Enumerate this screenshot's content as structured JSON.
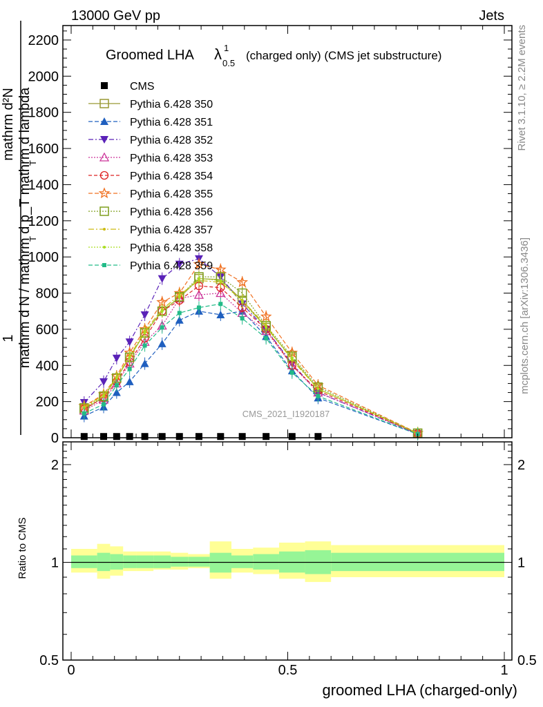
{
  "header": {
    "left": "13000 GeV pp",
    "right": "Jets"
  },
  "side": {
    "rivet": "Rivet 3.1.10, ≥ 2.2M events",
    "mcplots": "mcplots.cern.ch [arXiv:1306.3436]"
  },
  "colors": {
    "band_inner": "#96f596",
    "band_outer": "#ffff96"
  },
  "chart_data": {
    "type": "line",
    "title": "Groomed LHA",
    "title_lambda": "λ",
    "title_sup": "1",
    "title_sub": "0.5",
    "title_suffix": "(charged only) (CMS jet substructure)",
    "analysis_label": "CMS_2021_I1920187",
    "ylabel_num": "1",
    "ylabel_frac_top": "mathrm d²N",
    "ylabel_frac_bottom": "mathrm d N / mathrm d p_T mathrm d lambda",
    "ylabel_sub1": "T",
    "ylabel_sub2": "T",
    "xlabel": "groomed LHA (charged-only)",
    "ylabel_ratio": "Ratio to CMS",
    "xlim": [
      0,
      1
    ],
    "ylim": [
      0,
      2280
    ],
    "ratio_ylim": [
      0.5,
      2.35
    ],
    "x_ticks": [
      0,
      0.5,
      1
    ],
    "x_tick_labels": [
      "0",
      "0.5",
      "1"
    ],
    "y_ticks": [
      0,
      200,
      400,
      600,
      800,
      1000,
      1200,
      1400,
      1600,
      1800,
      2000,
      2200
    ],
    "y_tick_labels": [
      "0",
      "200",
      "400",
      "600",
      "800",
      "1000",
      "1200",
      "1400",
      "1600",
      "1800",
      "2000",
      "2200"
    ],
    "ratio_ticks": [
      0.5,
      1,
      2
    ],
    "ratio_tick_labels": [
      "0.5",
      "1",
      "2"
    ],
    "bin_edges": [
      0.0,
      0.06,
      0.09,
      0.12,
      0.15,
      0.19,
      0.23,
      0.27,
      0.32,
      0.37,
      0.42,
      0.48,
      0.54,
      0.6,
      1.0
    ],
    "x": [
      0.03,
      0.075,
      0.105,
      0.135,
      0.17,
      0.21,
      0.25,
      0.295,
      0.345,
      0.395,
      0.45,
      0.51,
      0.57,
      0.8
    ],
    "cms": [
      3,
      3,
      3,
      3,
      3,
      3,
      3,
      3,
      3,
      3,
      3,
      3,
      3,
      null
    ],
    "ratio_inner": [
      [
        0.96,
        1.05
      ],
      [
        0.94,
        1.07
      ],
      [
        0.95,
        1.06
      ],
      [
        0.96,
        1.05
      ],
      [
        0.96,
        1.05
      ],
      [
        0.96,
        1.05
      ],
      [
        0.97,
        1.04
      ],
      [
        0.97,
        1.04
      ],
      [
        0.93,
        1.07
      ],
      [
        0.96,
        1.05
      ],
      [
        0.95,
        1.06
      ],
      [
        0.93,
        1.08
      ],
      [
        0.92,
        1.09
      ],
      [
        0.94,
        1.07
      ]
    ],
    "ratio_outer": [
      [
        0.93,
        1.1
      ],
      [
        0.89,
        1.14
      ],
      [
        0.91,
        1.12
      ],
      [
        0.94,
        1.08
      ],
      [
        0.94,
        1.08
      ],
      [
        0.95,
        1.08
      ],
      [
        0.95,
        1.07
      ],
      [
        0.96,
        1.06
      ],
      [
        0.89,
        1.16
      ],
      [
        0.93,
        1.1
      ],
      [
        0.92,
        1.11
      ],
      [
        0.89,
        1.15
      ],
      [
        0.87,
        1.16
      ],
      [
        0.9,
        1.13
      ]
    ],
    "series": [
      {
        "name": "CMS",
        "legend": "CMS",
        "color": "#000000",
        "dash": "",
        "marker": "square-filled"
      },
      {
        "name": "Pythia 6.428 350",
        "legend": "Pythia 6.428 350",
        "color": "#999933",
        "dash": "",
        "marker": "square-open",
        "values": [
          155,
          225,
          330,
          445,
          580,
          700,
          775,
          880,
          875,
          760,
          610,
          440,
          270,
          25
        ]
      },
      {
        "name": "Pythia 6.428 351",
        "legend": "Pythia 6.428 351",
        "color": "#1f5fbf",
        "dash": "6,3",
        "marker": "triangle-up",
        "values": [
          120,
          170,
          250,
          310,
          410,
          520,
          650,
          700,
          680,
          700,
          560,
          370,
          220,
          20
        ]
      },
      {
        "name": "Pythia 6.428 352",
        "legend": "Pythia 6.428 352",
        "color": "#5a22b8",
        "dash": "7,3,2,3",
        "marker": "triangle-down",
        "values": [
          195,
          310,
          440,
          530,
          680,
          880,
          960,
          990,
          890,
          740,
          600,
          410,
          250,
          22
        ]
      },
      {
        "name": "Pythia 6.428 353",
        "legend": "Pythia 6.428 353",
        "color": "#cc3399",
        "dash": "2,2",
        "marker": "triangle-open",
        "values": [
          150,
          210,
          300,
          410,
          530,
          620,
          770,
          790,
          800,
          690,
          590,
          400,
          250,
          22
        ]
      },
      {
        "name": "Pythia 6.428 354",
        "legend": "Pythia 6.428 354",
        "color": "#dd2222",
        "dash": "5,3",
        "marker": "circle-open",
        "values": [
          160,
          220,
          310,
          420,
          550,
          700,
          760,
          840,
          830,
          720,
          600,
          400,
          260,
          24
        ]
      },
      {
        "name": "Pythia 6.428 355",
        "legend": "Pythia 6.428 355",
        "color": "#f07020",
        "dash": "6,3",
        "marker": "star",
        "values": [
          175,
          240,
          340,
          470,
          600,
          750,
          800,
          960,
          930,
          860,
          670,
          470,
          290,
          26
        ]
      },
      {
        "name": "Pythia 6.428 356",
        "legend": "Pythia 6.428 356",
        "color": "#7f9f1f",
        "dash": "2,2",
        "marker": "square-open",
        "values": [
          165,
          230,
          330,
          445,
          580,
          700,
          780,
          890,
          890,
          800,
          620,
          450,
          280,
          25
        ]
      },
      {
        "name": "Pythia 6.428 357",
        "legend": "Pythia 6.428 357",
        "color": "#ccbb11",
        "dash": "8,3,2,3",
        "marker": "dot",
        "values": [
          170,
          235,
          335,
          450,
          590,
          710,
          790,
          870,
          860,
          760,
          620,
          430,
          270,
          25
        ]
      },
      {
        "name": "Pythia 6.428 358",
        "legend": "Pythia 6.428 358",
        "color": "#aadd22",
        "dash": "2,2",
        "marker": "dot",
        "values": [
          165,
          230,
          330,
          445,
          580,
          700,
          780,
          880,
          870,
          750,
          610,
          440,
          270,
          25
        ]
      },
      {
        "name": "Pythia 6.428 359",
        "legend": "Pythia 6.428 359",
        "color": "#22bb88",
        "dash": "6,3",
        "marker": "square-filled-small",
        "values": [
          135,
          185,
          290,
          380,
          510,
          610,
          690,
          720,
          740,
          660,
          550,
          360,
          230,
          20
        ]
      }
    ]
  }
}
